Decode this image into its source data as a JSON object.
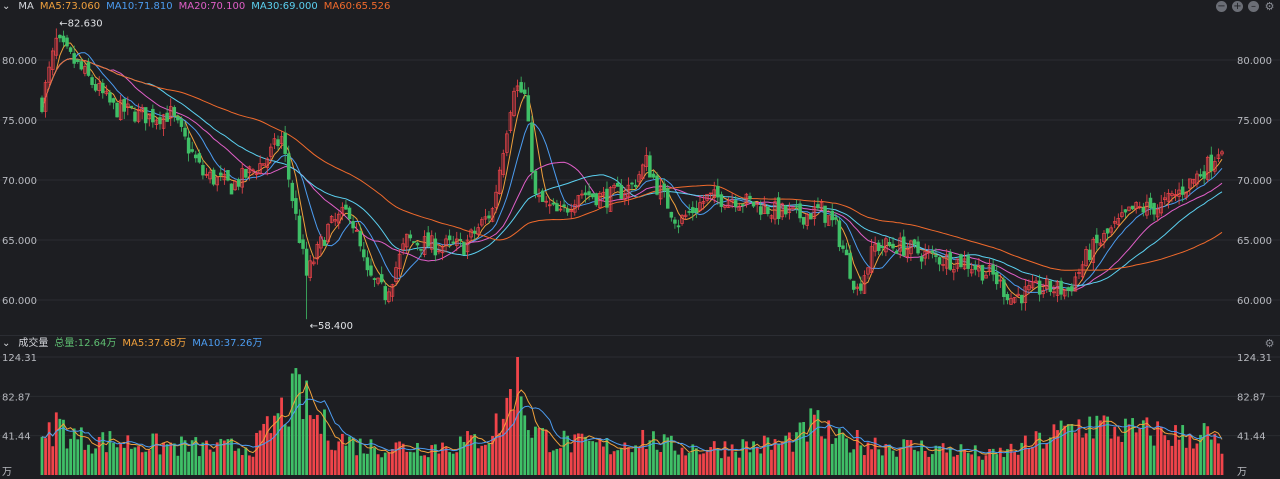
{
  "top_panel": {
    "indicator": "MA",
    "ma_labels": [
      {
        "text": "MA5:73.060",
        "color": "#f0a03c"
      },
      {
        "text": "MA10:71.810",
        "color": "#4c9cf0"
      },
      {
        "text": "MA20:70.100",
        "color": "#e05fc8"
      },
      {
        "text": "MA30:69.000",
        "color": "#5bd0f0"
      },
      {
        "text": "MA60:65.526",
        "color": "#f06a2c"
      }
    ],
    "controls": [
      "minus-icon",
      "plus-icon",
      "collapse-icon",
      "gear-icon"
    ]
  },
  "bottom_panel": {
    "indicator": "成交量",
    "labels": [
      {
        "text": "总量:12.64万",
        "color": "#5fbf72"
      },
      {
        "text": "MA5:37.68万",
        "color": "#f0a03c"
      },
      {
        "text": "MA10:37.26万",
        "color": "#4c9cf0"
      }
    ],
    "controls": [
      "gear-icon"
    ]
  },
  "chart_data": [
    {
      "type": "candlestick",
      "ylim": [
        57.5,
        83.5
      ],
      "yticks": [
        "80.000",
        "75.000",
        "70.000",
        "65.000",
        "60.000"
      ],
      "annotations": [
        {
          "text": "←82.630",
          "value": 82.63
        },
        {
          "text": "←58.400",
          "value": 58.4
        }
      ],
      "colors": {
        "up": "#f0444a",
        "down": "#3fbf67"
      },
      "close_anchors": [
        [
          0,
          76.5
        ],
        [
          4,
          81.5
        ],
        [
          10,
          79.5
        ],
        [
          20,
          76.0
        ],
        [
          30,
          75.3
        ],
        [
          36,
          75.5
        ],
        [
          45,
          70.5
        ],
        [
          53,
          69.5
        ],
        [
          62,
          71.5
        ],
        [
          67,
          73.5
        ],
        [
          70,
          68.5
        ],
        [
          74,
          62.0
        ],
        [
          80,
          66.0
        ],
        [
          86,
          67.5
        ],
        [
          91,
          62.0
        ],
        [
          96,
          60.5
        ],
        [
          102,
          65.0
        ],
        [
          110,
          64.5
        ],
        [
          118,
          64.5
        ],
        [
          126,
          67.5
        ],
        [
          132,
          78.0
        ],
        [
          135,
          77.0
        ],
        [
          138,
          68.5
        ],
        [
          145,
          67.0
        ],
        [
          150,
          69.0
        ],
        [
          158,
          68.5
        ],
        [
          165,
          69.5
        ],
        [
          169,
          71.5
        ],
        [
          172,
          69.5
        ],
        [
          178,
          66.5
        ],
        [
          186,
          68.5
        ],
        [
          194,
          68.5
        ],
        [
          204,
          67.5
        ],
        [
          212,
          67.0
        ],
        [
          218,
          67.5
        ],
        [
          222,
          66.0
        ],
        [
          228,
          60.8
        ],
        [
          233,
          64.5
        ],
        [
          240,
          64.5
        ],
        [
          250,
          63.5
        ],
        [
          258,
          63.2
        ],
        [
          266,
          62.0
        ],
        [
          271,
          60.2
        ],
        [
          280,
          61.0
        ],
        [
          287,
          60.8
        ],
        [
          293,
          64.0
        ],
        [
          305,
          67.5
        ],
        [
          313,
          67.8
        ],
        [
          320,
          69.5
        ],
        [
          327,
          71.5
        ],
        [
          330,
          73.1
        ]
      ],
      "ma_series": [
        {
          "name": "MA5",
          "color": "#f0a03c",
          "window": 5
        },
        {
          "name": "MA10",
          "color": "#4c9cf0",
          "window": 10
        },
        {
          "name": "MA20",
          "color": "#e05fc8",
          "window": 20
        },
        {
          "name": "MA30",
          "color": "#5bd0f0",
          "window": 30
        },
        {
          "name": "MA60",
          "color": "#f06a2c",
          "window": 60
        }
      ]
    },
    {
      "type": "bar",
      "yticks": [
        "124.31",
        "82.87",
        "41.44"
      ],
      "ylim": [
        0,
        124.31
      ],
      "unit": "万",
      "volume_anchors": [
        [
          0,
          30
        ],
        [
          4,
          55
        ],
        [
          10,
          38
        ],
        [
          20,
          35
        ],
        [
          30,
          32
        ],
        [
          40,
          30
        ],
        [
          50,
          28
        ],
        [
          60,
          32
        ],
        [
          68,
          70
        ],
        [
          72,
          85
        ],
        [
          76,
          60
        ],
        [
          82,
          40
        ],
        [
          90,
          30
        ],
        [
          100,
          30
        ],
        [
          110,
          30
        ],
        [
          120,
          35
        ],
        [
          126,
          45
        ],
        [
          130,
          70
        ],
        [
          133,
          120
        ],
        [
          136,
          55
        ],
        [
          140,
          40
        ],
        [
          150,
          32
        ],
        [
          160,
          30
        ],
        [
          168,
          40
        ],
        [
          175,
          30
        ],
        [
          185,
          28
        ],
        [
          195,
          30
        ],
        [
          205,
          32
        ],
        [
          212,
          40
        ],
        [
          216,
          55
        ],
        [
          222,
          35
        ],
        [
          230,
          35
        ],
        [
          240,
          30
        ],
        [
          250,
          28
        ],
        [
          258,
          25
        ],
        [
          265,
          20
        ],
        [
          275,
          30
        ],
        [
          285,
          45
        ],
        [
          292,
          55
        ],
        [
          298,
          50
        ],
        [
          305,
          45
        ],
        [
          312,
          45
        ],
        [
          320,
          40
        ],
        [
          325,
          45
        ],
        [
          330,
          25
        ]
      ]
    }
  ]
}
